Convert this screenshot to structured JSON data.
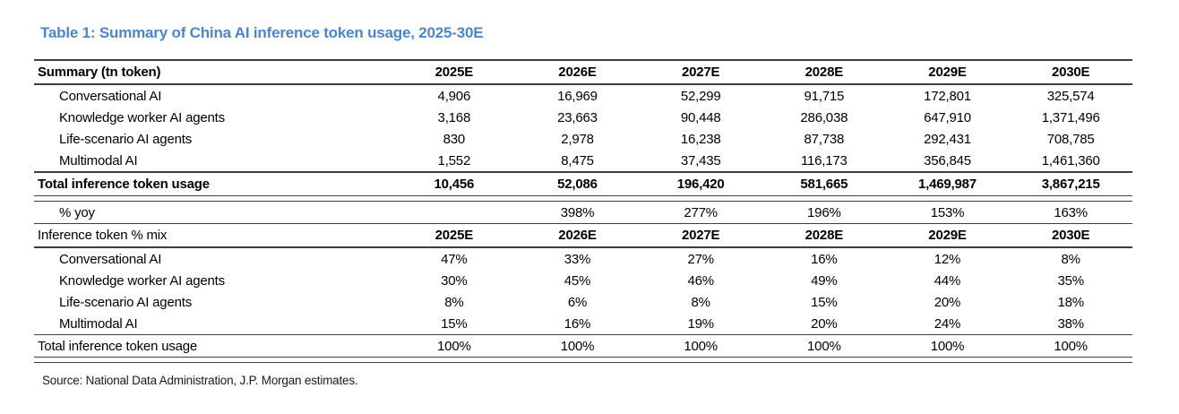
{
  "title": "Table 1: Summary of China AI inference token usage, 2025-30E",
  "colors": {
    "title_blue": "#4e86c4",
    "rule": "#3d3d3d"
  },
  "table": {
    "years": [
      "2025E",
      "2026E",
      "2027E",
      "2028E",
      "2029E",
      "2030E"
    ],
    "section1": {
      "header": "Summary (tn token)",
      "rows": [
        {
          "label": "Conversational AI",
          "values": [
            "4,906",
            "16,969",
            "52,299",
            "91,715",
            "172,801",
            "325,574"
          ]
        },
        {
          "label": "Knowledge worker AI agents",
          "values": [
            "3,168",
            "23,663",
            "90,448",
            "286,038",
            "647,910",
            "1,371,496"
          ]
        },
        {
          "label": "Life-scenario AI agents",
          "values": [
            "830",
            "2,978",
            "16,238",
            "87,738",
            "292,431",
            "708,785"
          ]
        },
        {
          "label": "Multimodal AI",
          "values": [
            "1,552",
            "8,475",
            "37,435",
            "116,173",
            "356,845",
            "1,461,360"
          ]
        }
      ],
      "total": {
        "label": "Total inference token usage",
        "values": [
          "10,456",
          "52,086",
          "196,420",
          "581,665",
          "1,469,987",
          "3,867,215"
        ]
      },
      "yoy": {
        "label": "% yoy",
        "values": [
          "",
          "398%",
          "277%",
          "196%",
          "153%",
          "163%"
        ]
      }
    },
    "section2": {
      "header": "Inference token % mix",
      "rows": [
        {
          "label": "Conversational AI",
          "values": [
            "47%",
            "33%",
            "27%",
            "16%",
            "12%",
            "8%"
          ]
        },
        {
          "label": "Knowledge worker AI agents",
          "values": [
            "30%",
            "45%",
            "46%",
            "49%",
            "44%",
            "35%"
          ]
        },
        {
          "label": "Life-scenario AI agents",
          "values": [
            "8%",
            "6%",
            "8%",
            "15%",
            "20%",
            "18%"
          ]
        },
        {
          "label": "Multimodal AI",
          "values": [
            "15%",
            "16%",
            "19%",
            "20%",
            "24%",
            "38%"
          ]
        }
      ],
      "total": {
        "label": "Total inference token usage",
        "values": [
          "100%",
          "100%",
          "100%",
          "100%",
          "100%",
          "100%"
        ]
      }
    }
  },
  "source": "Source: National Data Administration, J.P. Morgan estimates."
}
